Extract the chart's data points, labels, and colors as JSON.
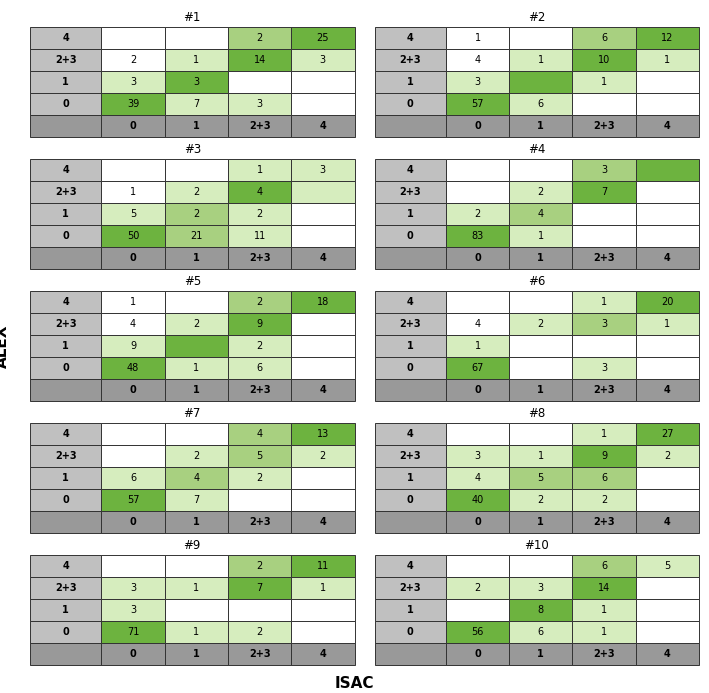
{
  "panels": [
    {
      "id": "#1",
      "data": [
        [
          "",
          "",
          "2",
          "25"
        ],
        [
          "2",
          "1",
          "14",
          "3"
        ],
        [
          "3",
          "3",
          "",
          ""
        ],
        [
          "39",
          "7",
          "3",
          ""
        ]
      ],
      "colors": [
        [
          "w",
          "w",
          "lg2",
          "g"
        ],
        [
          "w",
          "lg1",
          "g",
          "lg1"
        ],
        [
          "lg1",
          "g",
          "w",
          "w"
        ],
        [
          "g",
          "lg1",
          "lg1",
          "w"
        ]
      ]
    },
    {
      "id": "#2",
      "data": [
        [
          "1",
          "",
          "6",
          "12"
        ],
        [
          "4",
          "1",
          "10",
          "1"
        ],
        [
          "3",
          "",
          "1",
          ""
        ],
        [
          "57",
          "6",
          "",
          ""
        ]
      ],
      "colors": [
        [
          "w",
          "w",
          "lg2",
          "g"
        ],
        [
          "w",
          "lg1",
          "g",
          "lg1"
        ],
        [
          "lg1",
          "g",
          "lg1",
          "w"
        ],
        [
          "g",
          "lg1",
          "w",
          "w"
        ]
      ]
    },
    {
      "id": "#3",
      "data": [
        [
          "",
          "",
          "1",
          "3"
        ],
        [
          "1",
          "2",
          "4",
          ""
        ],
        [
          "5",
          "2",
          "2",
          ""
        ],
        [
          "50",
          "21",
          "11",
          ""
        ]
      ],
      "colors": [
        [
          "w",
          "w",
          "lg1",
          "lg1"
        ],
        [
          "w",
          "lg1",
          "g",
          "lg1"
        ],
        [
          "lg1",
          "lg2",
          "lg1",
          "w"
        ],
        [
          "g",
          "lg2",
          "lg1",
          "w"
        ]
      ]
    },
    {
      "id": "#4",
      "data": [
        [
          "",
          "",
          "3",
          ""
        ],
        [
          "",
          "2",
          "7",
          ""
        ],
        [
          "2",
          "4",
          "",
          ""
        ],
        [
          "83",
          "1",
          "",
          ""
        ]
      ],
      "colors": [
        [
          "w",
          "w",
          "lg2",
          "g"
        ],
        [
          "w",
          "lg1",
          "g",
          "w"
        ],
        [
          "lg1",
          "lg2",
          "w",
          "w"
        ],
        [
          "g",
          "lg1",
          "w",
          "w"
        ]
      ]
    },
    {
      "id": "#5",
      "data": [
        [
          "1",
          "",
          "2",
          "18"
        ],
        [
          "4",
          "2",
          "9",
          ""
        ],
        [
          "9",
          "",
          "2",
          ""
        ],
        [
          "48",
          "1",
          "6",
          ""
        ]
      ],
      "colors": [
        [
          "w",
          "w",
          "lg2",
          "g"
        ],
        [
          "w",
          "lg1",
          "g",
          "w"
        ],
        [
          "lg1",
          "g",
          "lg1",
          "w"
        ],
        [
          "g",
          "lg1",
          "lg1",
          "w"
        ]
      ]
    },
    {
      "id": "#6",
      "data": [
        [
          "",
          "",
          "1",
          "20"
        ],
        [
          "4",
          "2",
          "3",
          "1"
        ],
        [
          "1",
          "",
          "",
          ""
        ],
        [
          "67",
          "",
          "3",
          ""
        ]
      ],
      "colors": [
        [
          "w",
          "w",
          "lg1",
          "g"
        ],
        [
          "w",
          "lg1",
          "lg2",
          "lg1"
        ],
        [
          "lg1",
          "w",
          "w",
          "w"
        ],
        [
          "g",
          "w",
          "lg1",
          "w"
        ]
      ]
    },
    {
      "id": "#7",
      "data": [
        [
          "",
          "",
          "4",
          "13"
        ],
        [
          "",
          "2",
          "5",
          "2"
        ],
        [
          "6",
          "4",
          "2",
          ""
        ],
        [
          "57",
          "7",
          "",
          ""
        ]
      ],
      "colors": [
        [
          "w",
          "w",
          "lg2",
          "g"
        ],
        [
          "w",
          "lg1",
          "lg2",
          "lg1"
        ],
        [
          "lg1",
          "lg2",
          "lg1",
          "w"
        ],
        [
          "g",
          "lg1",
          "w",
          "w"
        ]
      ]
    },
    {
      "id": "#8",
      "data": [
        [
          "",
          "",
          "1",
          "27"
        ],
        [
          "3",
          "1",
          "9",
          "2"
        ],
        [
          "4",
          "5",
          "6",
          ""
        ],
        [
          "40",
          "2",
          "2",
          ""
        ]
      ],
      "colors": [
        [
          "w",
          "w",
          "lg1",
          "g"
        ],
        [
          "lg1",
          "lg1",
          "g",
          "lg1"
        ],
        [
          "lg1",
          "lg2",
          "lg2",
          "w"
        ],
        [
          "g",
          "lg1",
          "lg1",
          "w"
        ]
      ]
    },
    {
      "id": "#9",
      "data": [
        [
          "",
          "",
          "2",
          "11"
        ],
        [
          "3",
          "1",
          "7",
          "1"
        ],
        [
          "3",
          "",
          "",
          ""
        ],
        [
          "71",
          "1",
          "2",
          ""
        ]
      ],
      "colors": [
        [
          "w",
          "w",
          "lg2",
          "g"
        ],
        [
          "lg1",
          "lg1",
          "g",
          "lg1"
        ],
        [
          "lg1",
          "w",
          "w",
          "w"
        ],
        [
          "g",
          "lg1",
          "lg1",
          "w"
        ]
      ]
    },
    {
      "id": "#10",
      "data": [
        [
          "",
          "",
          "6",
          "5"
        ],
        [
          "2",
          "3",
          "14",
          ""
        ],
        [
          "",
          "8",
          "1",
          ""
        ],
        [
          "56",
          "6",
          "1",
          ""
        ]
      ],
      "colors": [
        [
          "w",
          "w",
          "lg2",
          "lg1"
        ],
        [
          "lg1",
          "lg1",
          "g",
          "w"
        ],
        [
          "w",
          "g",
          "lg1",
          "w"
        ],
        [
          "g",
          "lg1",
          "lg1",
          "w"
        ]
      ]
    }
  ],
  "cmap": {
    "w": "#FFFFFF",
    "lg1": "#D6EDBE",
    "lg2": "#A8D080",
    "g": "#6DB33F",
    "gL": "#C0C0C0",
    "gD": "#999999"
  },
  "row_labels": [
    "4",
    "2+3",
    "1",
    "0"
  ],
  "col_labels": [
    "0",
    "1",
    "2+3",
    "4"
  ],
  "xlabel": "ISAC",
  "ylabel": "ALEX"
}
